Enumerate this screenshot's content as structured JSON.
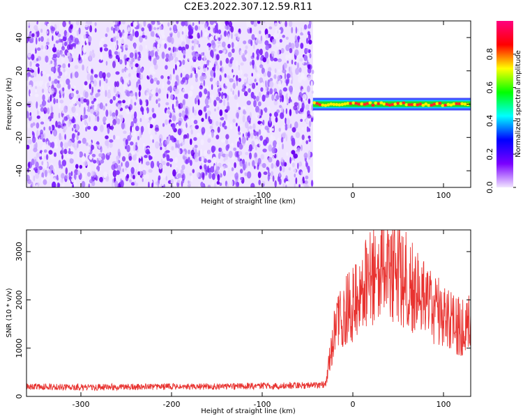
{
  "title": "C2E3.2022.307.12.59.R11",
  "chart_data": [
    {
      "type": "heatmap",
      "xlabel": "Height of straight line (km)",
      "ylabel": "Frequency (Hz)",
      "xlim": [
        -360,
        130
      ],
      "ylim": [
        -50,
        50
      ],
      "xticks": [
        -300,
        -200,
        -100,
        0,
        100
      ],
      "yticks": [
        -40,
        -20,
        0,
        20,
        40
      ],
      "data_extent_x": [
        -360,
        -44
      ],
      "signal_segment": {
        "x_start": -44,
        "x_end": 130,
        "frequency_hz": 0
      },
      "colorbar": {
        "label": "Normalized spectral amplitude",
        "range": [
          0,
          1
        ],
        "ticks": [
          "0.0",
          "0.2",
          "0.4",
          "0.6",
          "0.8"
        ],
        "colors": [
          "#f2e6ff",
          "#7a00ff",
          "#0000ff",
          "#00ffff",
          "#00ff00",
          "#ffff00",
          "#ff0000",
          "#ff007f"
        ]
      },
      "noise_color": "#7a1fff",
      "grid": false
    },
    {
      "type": "line",
      "xlabel": "Height of straight line (km)",
      "ylabel": "SNR (10 * v/v)",
      "xlim": [
        -360,
        130
      ],
      "ylim": [
        0,
        3450
      ],
      "xticks": [
        -300,
        -200,
        -100,
        0,
        100
      ],
      "yticks": [
        0,
        1000,
        2000,
        3000
      ],
      "color": "#e8322f",
      "x": [
        -360,
        -300,
        -200,
        -100,
        -40,
        -30,
        -25,
        -20,
        -15,
        -10,
        0,
        10,
        20,
        30,
        35,
        40,
        50,
        60,
        70,
        80,
        90,
        100,
        110,
        120,
        130
      ],
      "y": [
        200,
        190,
        200,
        215,
        230,
        250,
        900,
        1300,
        1600,
        1750,
        1900,
        2200,
        2500,
        2650,
        2900,
        2650,
        2550,
        2400,
        2150,
        1950,
        1800,
        1700,
        1500,
        1450,
        1650
      ],
      "grid": false
    }
  ]
}
